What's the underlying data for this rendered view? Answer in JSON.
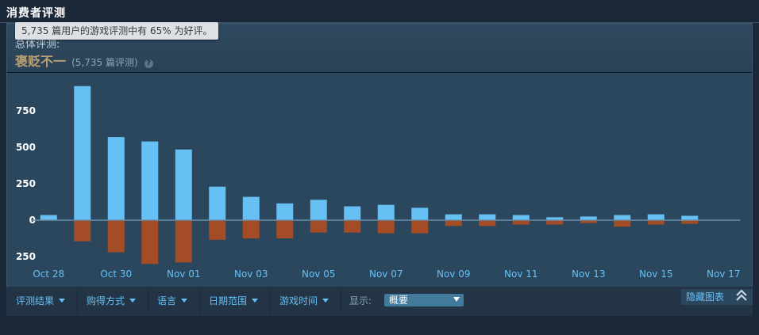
{
  "section": {
    "title": "消费者评测"
  },
  "summary": {
    "overall_label": "总体评测:",
    "tooltip": "5,735 篇用户的游戏评测中有 65% 为好评。",
    "rating": "褒贬不一",
    "count_text": "(5,735 篇评测)",
    "help_symbol": "?"
  },
  "chart_data": {
    "type": "bar",
    "categories": [
      "Oct 28",
      "Oct 29",
      "Oct 30",
      "Oct 31",
      "Nov 01",
      "Nov 02",
      "Nov 03",
      "Nov 04",
      "Nov 05",
      "Nov 06",
      "Nov 07",
      "Nov 08",
      "Nov 09",
      "Nov 10",
      "Nov 11",
      "Nov 12",
      "Nov 13",
      "Nov 14",
      "Nov 15",
      "Nov 16",
      "Nov 17"
    ],
    "x_tick_labels": [
      "Oct 28",
      "Oct 30",
      "Nov 01",
      "Nov 03",
      "Nov 05",
      "Nov 07",
      "Nov 09",
      "Nov 11",
      "Nov 13",
      "Nov 15",
      "Nov 17"
    ],
    "series": [
      {
        "values": [
          35,
          920,
          570,
          540,
          485,
          230,
          160,
          115,
          140,
          95,
          105,
          85,
          40,
          40,
          35,
          20,
          25,
          35,
          40,
          30,
          0
        ]
      },
      {
        "values": [
          0,
          -145,
          -220,
          -300,
          -290,
          -135,
          -125,
          -125,
          -85,
          -85,
          -90,
          -90,
          -40,
          -40,
          -30,
          -30,
          -20,
          -45,
          -30,
          -25,
          0
        ]
      }
    ],
    "y_ticks": [
      750,
      500,
      250,
      0,
      -250
    ],
    "y_tick_labels": [
      "750",
      "500",
      "250",
      "0",
      "250"
    ],
    "ylim": [
      -300,
      1000
    ],
    "colors": {
      "positive": "#66c0f4",
      "negative": "#a34c25",
      "zero_line": "#6a8ea8"
    },
    "grid": false,
    "legend": "none"
  },
  "controls": {
    "filters": [
      {
        "label": "评测结果"
      },
      {
        "label": "购得方式"
      },
      {
        "label": "语言"
      },
      {
        "label": "日期范围"
      },
      {
        "label": "游戏时间"
      }
    ],
    "display_label": "显示:",
    "display_value": "概要",
    "hide_label": "隐藏图表"
  }
}
